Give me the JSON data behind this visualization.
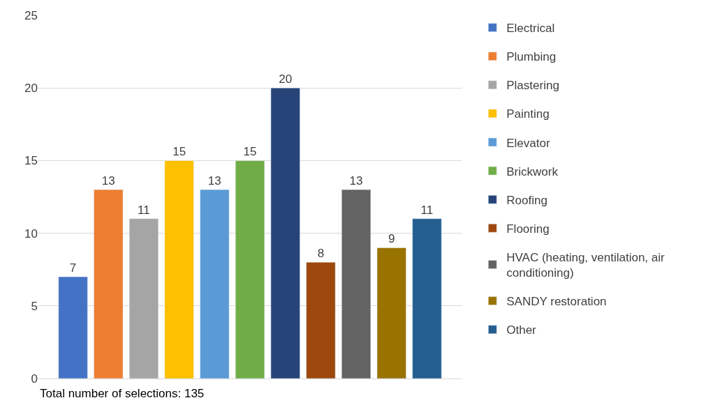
{
  "chart_data": {
    "type": "bar",
    "categories": [
      null
    ],
    "series": [
      {
        "name": "Electrical",
        "color": "#4472c4",
        "values": [
          7
        ]
      },
      {
        "name": "Plumbing",
        "color": "#ed7d31",
        "values": [
          13
        ]
      },
      {
        "name": "Plastering",
        "color": "#a5a5a5",
        "values": [
          11
        ]
      },
      {
        "name": "Painting",
        "color": "#ffc000",
        "values": [
          15
        ]
      },
      {
        "name": "Elevator",
        "color": "#5b9bd5",
        "values": [
          13
        ]
      },
      {
        "name": "Brickwork",
        "color": "#70ad47",
        "values": [
          15
        ]
      },
      {
        "name": "Roofing",
        "color": "#264478",
        "values": [
          20
        ]
      },
      {
        "name": "Flooring",
        "color": "#9e480e",
        "values": [
          8
        ]
      },
      {
        "name": "HVAC (heating, ventilation, air conditioning)",
        "color": "#636363",
        "values": [
          13
        ]
      },
      {
        "name": "SANDY restoration",
        "color": "#997300",
        "values": [
          9
        ]
      },
      {
        "name": "Other",
        "color": "#255e91",
        "values": [
          11
        ]
      }
    ],
    "ylim": [
      0,
      25
    ],
    "yticks": [
      0,
      5,
      10,
      15,
      20,
      25
    ],
    "grid": "y",
    "data_labels": true,
    "legend": "right",
    "annotations": [
      "Total number of selections: 135"
    ]
  }
}
